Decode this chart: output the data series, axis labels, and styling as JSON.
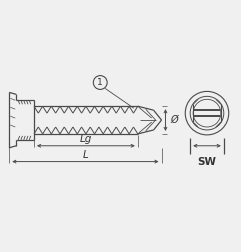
{
  "bg_color": "#f0f0f0",
  "line_color": "#4a4a4a",
  "text_color": "#333333",
  "labels": {
    "Lg": "Lg",
    "L": "L",
    "diameter": "Ø",
    "SW": "SW",
    "circle_num": "1"
  },
  "figsize": [
    2.41,
    2.52
  ],
  "dpi": 100
}
